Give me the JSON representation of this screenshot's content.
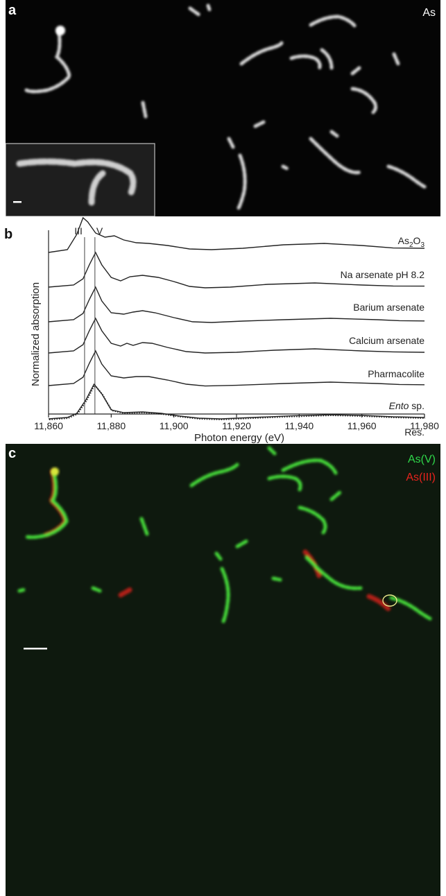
{
  "panel_a": {
    "letter": "a",
    "element_label": "As"
  },
  "panel_b": {
    "letter": "b"
  },
  "panel_c": {
    "letter": "c",
    "legend": [
      {
        "label": "As(V)",
        "color": "#2fd84a"
      },
      {
        "label": "As(III)",
        "color": "#e8231d"
      }
    ]
  },
  "chart_data": {
    "type": "line",
    "xlabel": "Photon energy (eV)",
    "ylabel": "Normalized absorption",
    "xlim": [
      11860,
      11980
    ],
    "x_ticks": [
      "11,860",
      "11,880",
      "11,900",
      "11,920",
      "11,940",
      "11,960",
      "11,980"
    ],
    "grid": false,
    "reference_lines": [
      {
        "label": "III",
        "x": 11871.5
      },
      {
        "label": "V",
        "x": 11874.8
      }
    ],
    "series": [
      {
        "name": "As2O3",
        "label_main": "As",
        "label_sub1": "2",
        "label_mid": "O",
        "label_sub2": "3",
        "points": [
          [
            11860,
            0.9
          ],
          [
            11866,
            1.1
          ],
          [
            11869,
            2.2
          ],
          [
            11871,
            3.4
          ],
          [
            11872.5,
            3.1
          ],
          [
            11875,
            2.3
          ],
          [
            11878,
            2.0
          ],
          [
            11881,
            2.1
          ],
          [
            11884,
            1.8
          ],
          [
            11888,
            1.6
          ],
          [
            11892,
            1.55
          ],
          [
            11898,
            1.4
          ],
          [
            11905,
            1.15
          ],
          [
            11912,
            1.1
          ],
          [
            11922,
            1.2
          ],
          [
            11935,
            1.45
          ],
          [
            11948,
            1.55
          ],
          [
            11960,
            1.4
          ],
          [
            11970,
            1.22
          ],
          [
            11980,
            1.2
          ]
        ]
      },
      {
        "name": "Na arsenate pH 8.2",
        "label": "Na arsenate pH 8.2",
        "points": [
          [
            11860,
            0.9
          ],
          [
            11868,
            1.05
          ],
          [
            11871,
            1.5
          ],
          [
            11873,
            2.5
          ],
          [
            11875,
            3.4
          ],
          [
            11877,
            2.5
          ],
          [
            11880,
            1.6
          ],
          [
            11883,
            1.35
          ],
          [
            11886,
            1.65
          ],
          [
            11890,
            1.75
          ],
          [
            11895,
            1.6
          ],
          [
            11900,
            1.3
          ],
          [
            11905,
            0.95
          ],
          [
            11910,
            0.85
          ],
          [
            11918,
            0.9
          ],
          [
            11930,
            1.1
          ],
          [
            11945,
            1.2
          ],
          [
            11960,
            1.05
          ],
          [
            11970,
            0.98
          ],
          [
            11980,
            0.97
          ]
        ]
      },
      {
        "name": "Barium arsenate",
        "label": "Barium arsenate",
        "points": [
          [
            11860,
            0.9
          ],
          [
            11868,
            1.05
          ],
          [
            11871,
            1.5
          ],
          [
            11873,
            2.5
          ],
          [
            11875,
            3.4
          ],
          [
            11877,
            2.4
          ],
          [
            11880,
            1.55
          ],
          [
            11884,
            1.45
          ],
          [
            11887,
            1.6
          ],
          [
            11890,
            1.7
          ],
          [
            11894,
            1.55
          ],
          [
            11900,
            1.2
          ],
          [
            11906,
            0.9
          ],
          [
            11912,
            0.85
          ],
          [
            11922,
            0.95
          ],
          [
            11935,
            1.05
          ],
          [
            11950,
            1.15
          ],
          [
            11965,
            1.05
          ],
          [
            11972,
            0.98
          ],
          [
            11980,
            0.96
          ]
        ]
      },
      {
        "name": "Calcium arsenate",
        "label": "Calcium arsenate",
        "points": [
          [
            11860,
            0.9
          ],
          [
            11868,
            1.05
          ],
          [
            11871,
            1.5
          ],
          [
            11873,
            2.5
          ],
          [
            11875,
            3.4
          ],
          [
            11877,
            2.5
          ],
          [
            11880,
            1.6
          ],
          [
            11883,
            1.4
          ],
          [
            11885,
            1.6
          ],
          [
            11887,
            1.45
          ],
          [
            11890,
            1.65
          ],
          [
            11893,
            1.6
          ],
          [
            11898,
            1.3
          ],
          [
            11904,
            1.0
          ],
          [
            11910,
            0.9
          ],
          [
            11920,
            0.95
          ],
          [
            11932,
            1.1
          ],
          [
            11945,
            1.2
          ],
          [
            11960,
            1.05
          ],
          [
            11970,
            0.98
          ],
          [
            11980,
            0.95
          ]
        ]
      },
      {
        "name": "Pharmacolite",
        "label": "Pharmacolite",
        "points": [
          [
            11860,
            0.9
          ],
          [
            11868,
            1.05
          ],
          [
            11871,
            1.5
          ],
          [
            11873,
            2.5
          ],
          [
            11875,
            3.4
          ],
          [
            11877,
            2.45
          ],
          [
            11880,
            1.6
          ],
          [
            11884,
            1.45
          ],
          [
            11888,
            1.55
          ],
          [
            11892,
            1.55
          ],
          [
            11898,
            1.3
          ],
          [
            11904,
            1.0
          ],
          [
            11910,
            0.87
          ],
          [
            11920,
            0.92
          ],
          [
            11935,
            1.05
          ],
          [
            11950,
            1.15
          ],
          [
            11965,
            1.05
          ],
          [
            11972,
            0.98
          ],
          [
            11980,
            0.96
          ]
        ]
      },
      {
        "name": "Ento sp.",
        "label_italic": "Ento",
        "label_rest": " sp.",
        "fit_dotted": true,
        "points": [
          [
            11860,
            0.9
          ],
          [
            11866,
            1.0
          ],
          [
            11869,
            1.3
          ],
          [
            11872,
            2.3
          ],
          [
            11874.5,
            3.4
          ],
          [
            11877,
            2.7
          ],
          [
            11880,
            1.55
          ],
          [
            11884,
            1.35
          ],
          [
            11890,
            1.4
          ],
          [
            11896,
            1.3
          ],
          [
            11902,
            1.1
          ],
          [
            11908,
            0.95
          ],
          [
            11915,
            0.9
          ],
          [
            11925,
            1.0
          ],
          [
            11938,
            1.12
          ],
          [
            11950,
            1.2
          ],
          [
            11960,
            1.15
          ],
          [
            11970,
            1.05
          ],
          [
            11980,
            1.0
          ]
        ]
      },
      {
        "name": "Res.",
        "label": "Res.",
        "style": "dash-dot",
        "points": [
          [
            11860,
            0.0
          ],
          [
            11868,
            0.0
          ],
          [
            11871,
            -0.08
          ],
          [
            11873,
            0.12
          ],
          [
            11874.8,
            -0.45
          ],
          [
            11876.5,
            0.3
          ],
          [
            11878,
            0.15
          ],
          [
            11881,
            -0.05
          ],
          [
            11886,
            0.02
          ],
          [
            11900,
            0.0
          ],
          [
            11930,
            0.0
          ],
          [
            11980,
            0.0
          ]
        ]
      }
    ]
  }
}
